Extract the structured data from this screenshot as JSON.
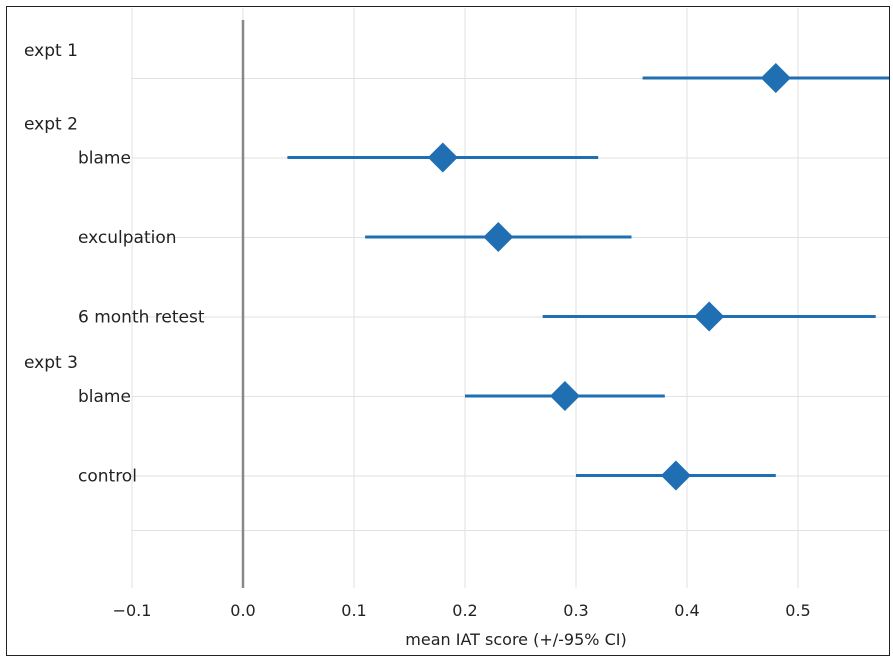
{
  "chart_data": {
    "type": "forest",
    "xlabel": "mean IAT score (+/-95% CI)",
    "xlim": [
      -0.1,
      0.59
    ],
    "xticks": [
      "−0.1",
      "0.0",
      "0.1",
      "0.2",
      "0.3",
      "0.4",
      "0.5"
    ],
    "xtick_values": [
      -0.1,
      0.0,
      0.1,
      0.2,
      0.3,
      0.4,
      0.5
    ],
    "reference_line": 0.0,
    "grid": true,
    "marker_color": "#1f6fb2",
    "groups": [
      {
        "label": "expt 1",
        "items": [
          {
            "label": "",
            "mean": 0.48,
            "low": 0.36,
            "high": 0.59
          }
        ]
      },
      {
        "label": "expt 2",
        "items": [
          {
            "label": "blame",
            "mean": 0.18,
            "low": 0.04,
            "high": 0.32
          },
          {
            "label": "exculpation",
            "mean": 0.23,
            "low": 0.11,
            "high": 0.35
          },
          {
            "label": "6 month retest",
            "mean": 0.42,
            "low": 0.27,
            "high": 0.57
          }
        ]
      },
      {
        "label": "expt 3",
        "items": [
          {
            "label": "blame",
            "mean": 0.29,
            "low": 0.2,
            "high": 0.38
          },
          {
            "label": "control",
            "mean": 0.39,
            "low": 0.3,
            "high": 0.48
          }
        ]
      }
    ]
  }
}
